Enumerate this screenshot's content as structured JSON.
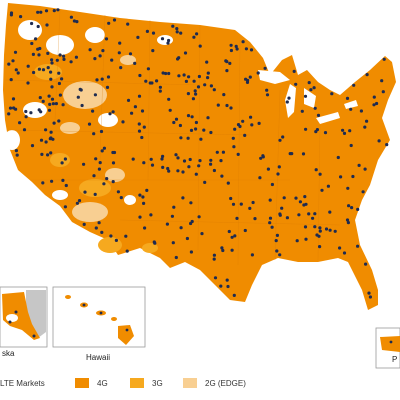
{
  "legend": {
    "title": "LTE Markets",
    "items": [
      {
        "label": "4G",
        "color": "#f08c00"
      },
      {
        "label": "3G",
        "color": "#f6a91f"
      },
      {
        "label": "2G (EDGE)",
        "color": "#f8cf92"
      }
    ]
  },
  "insets": {
    "alaska": "ska",
    "hawaii": "Hawaii",
    "puerto_rico": "P"
  },
  "colors": {
    "coverage_4g": "#f08c00",
    "coverage_3g": "#f6a91f",
    "coverage_2g": "#f8cf92",
    "market_dot": "#1e2b50",
    "no_coverage": "#ffffff",
    "inset_border": "#999999",
    "alaska_canada_gray": "#c6c6c6"
  }
}
